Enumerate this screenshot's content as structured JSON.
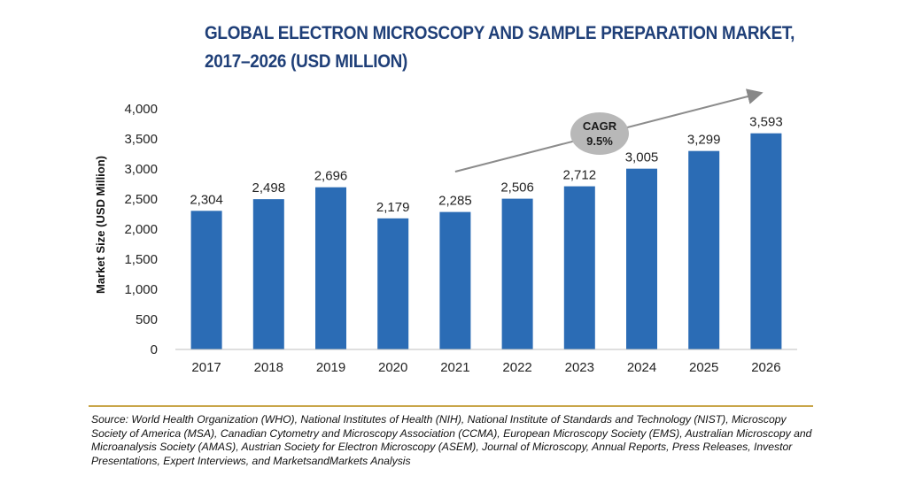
{
  "chart_data": {
    "type": "bar",
    "title_lines": [
      "GLOBAL ELECTRON MICROSCOPY AND SAMPLE PREPARATION MARKET,",
      "2017–2026 (USD MILLION)"
    ],
    "categories": [
      "2017",
      "2018",
      "2019",
      "2020",
      "2021",
      "2022",
      "2023",
      "2024",
      "2025",
      "2026"
    ],
    "values": [
      2304,
      2498,
      2696,
      2179,
      2285,
      2506,
      2712,
      3005,
      3299,
      3593
    ],
    "value_labels": [
      "2,304",
      "2,498",
      "2,696",
      "2,179",
      "2,285",
      "2,506",
      "2,712",
      "3,005",
      "3,299",
      "3,593"
    ],
    "ylabel": "Market Size (USD Million)",
    "xlabel": "",
    "ylim": [
      0,
      4000
    ],
    "yticks": [
      0,
      500,
      1000,
      1500,
      2000,
      2500,
      3000,
      3500,
      4000
    ],
    "ytick_labels": [
      "0",
      "500",
      "1,000",
      "1,500",
      "2,000",
      "2,500",
      "3,000",
      "3,500",
      "4,000"
    ],
    "grid": false,
    "bar_color": "#2b6cb5",
    "annotation": {
      "label": "CAGR",
      "value": "9.5%",
      "arrow_from_category": "2021",
      "arrow_to_category": "2026"
    }
  },
  "source": "Source: World Health Organization (WHO), National Institutes of Health (NIH), National Institute of Standards and Technology (NIST), Microscopy Society of America (MSA), Canadian Cytometry and Microscopy Association (CCMA), European Microscopy Society (EMS), Australian Microscopy and Microanalysis Society (AMAS), Austrian Society for Electron Microscopy (ASEM), Journal of Microscopy, Annual Reports, Press Releases, Investor Presentations, Expert Interviews, and MarketsandMarkets Analysis"
}
